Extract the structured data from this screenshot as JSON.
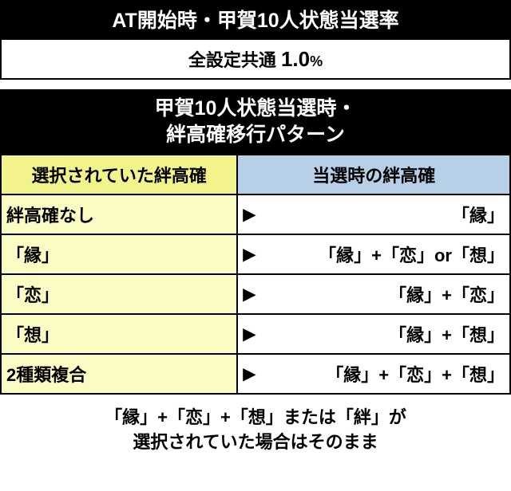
{
  "section1": {
    "title": "AT開始時・甲賀10人状態当選率",
    "label_prefix": "全設定共通 ",
    "value": "1.0",
    "percent": "%"
  },
  "section2": {
    "title_line1": "甲賀10人状態当選時・",
    "title_line2": "絆高確移行パターン",
    "col_left": "選択されていた絆高確",
    "col_right": "当選時の絆高確",
    "rows": [
      {
        "left": "絆高確なし",
        "right": "「縁」"
      },
      {
        "left": "「縁」",
        "right": "「縁」+「恋」or「想」"
      },
      {
        "left": "「恋」",
        "right": "「縁」+「恋」"
      },
      {
        "left": "「想」",
        "right": "「縁」+「想」"
      },
      {
        "left": "2種類複合",
        "right": "「縁」+「恋」+「想」"
      }
    ]
  },
  "footnote": {
    "line1": "「縁」+「恋」+「想」または「絆」が",
    "line2": "選択されていた場合はそのまま"
  },
  "arrow": "▶"
}
